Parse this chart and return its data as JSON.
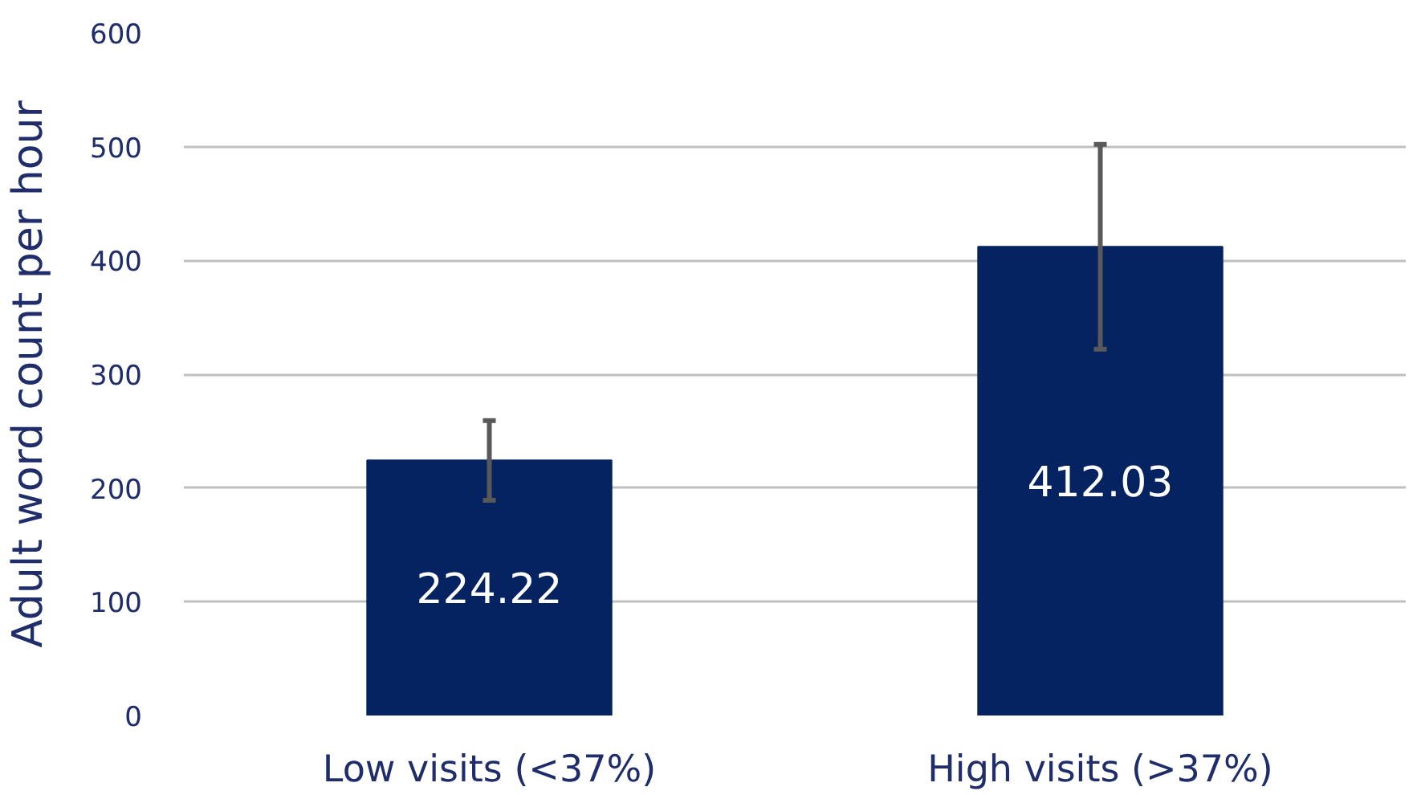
{
  "chart_data": {
    "type": "bar",
    "ylabel": "Adult word count per hour",
    "categories": [
      "Low visits (<37%)",
      "High visits (>37%)"
    ],
    "values": [
      224.22,
      412.03
    ],
    "errors": [
      35,
      90
    ],
    "color": "#052360",
    "ylim": [
      0,
      600
    ],
    "yticks": [
      0,
      100,
      200,
      300,
      400,
      500,
      600
    ],
    "grid": "y",
    "data_labels": true
  }
}
